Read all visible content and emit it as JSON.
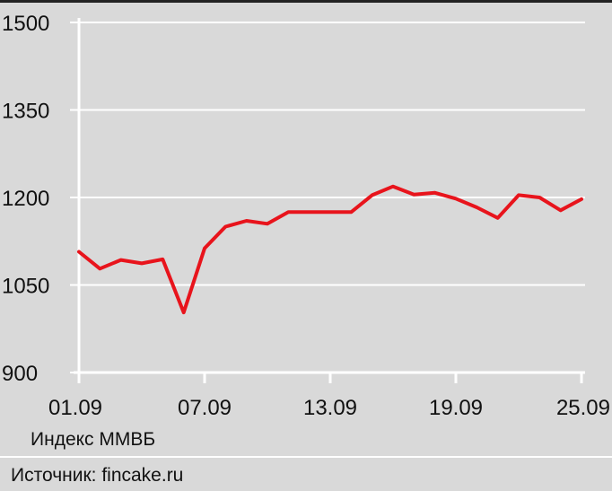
{
  "chart_data": {
    "type": "line",
    "title": "",
    "xlabel": "",
    "ylabel": "",
    "x_tick_labels": [
      "01.09",
      "07.09",
      "13.09",
      "19.09",
      "25.09"
    ],
    "y_tick_labels": [
      "900",
      "1050",
      "1200",
      "1350",
      "1500"
    ],
    "ylim": [
      900,
      1500
    ],
    "grid": true,
    "series": [
      {
        "color": "#e8141c",
        "values": [
          1107,
          1078,
          1093,
          1087,
          1094,
          1003,
          1113,
          1150,
          1160,
          1155,
          1175,
          1175,
          1175,
          1175,
          1204,
          1219,
          1205,
          1208,
          1198,
          1183,
          1165,
          1204,
          1200,
          1178,
          1197
        ]
      }
    ]
  },
  "caption": "Индекс ММВБ",
  "source": "Источник: fincake.ru"
}
